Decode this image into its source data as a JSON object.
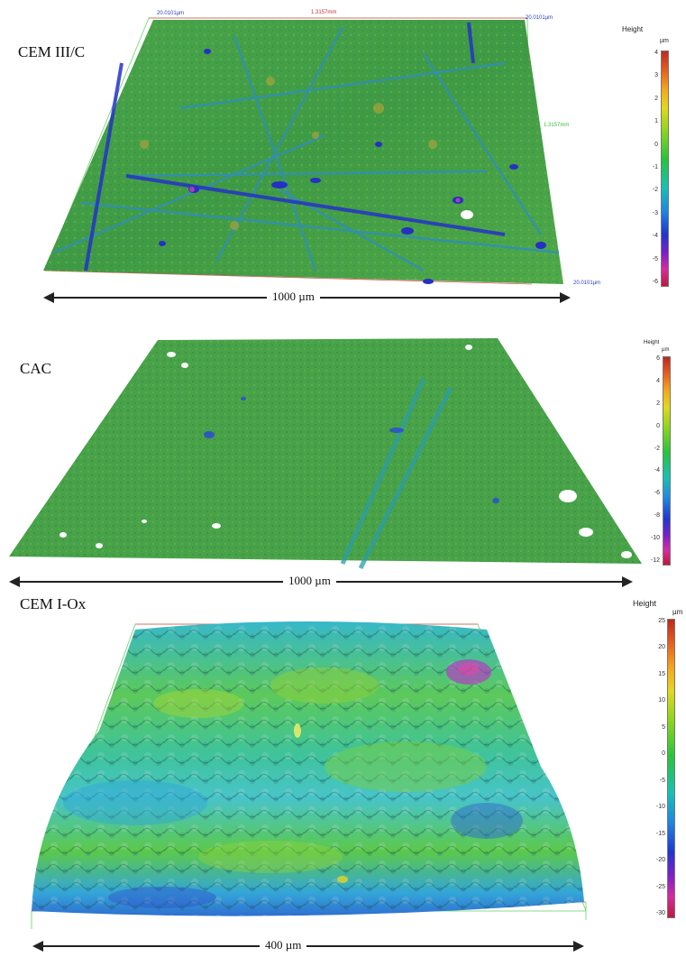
{
  "panels": [
    {
      "label": "CEM III/C",
      "scale": "1000 µm",
      "colorbar": {
        "title": "Height",
        "unit": "µm",
        "ticks": [
          "4",
          "3",
          "2",
          "1",
          "0",
          "-1",
          "-2",
          "-3",
          "-4",
          "-5",
          "-6"
        ]
      },
      "measurements": [
        "20.0101µm",
        "1.3157mm",
        "20.0101µm",
        "1.3157mm",
        "20.0101µm"
      ]
    },
    {
      "label": "CAC",
      "scale": "1000 µm",
      "colorbar": {
        "title": "Height",
        "unit": "µm",
        "ticks": [
          "6",
          "4",
          "2",
          "0",
          "-2",
          "-4",
          "-6",
          "-8",
          "-10",
          "-12"
        ]
      }
    },
    {
      "label": "CEM I-Ox",
      "scale": "400 µm",
      "colorbar": {
        "title": "Height",
        "unit": "µm",
        "ticks": [
          "25",
          "20",
          "15",
          "10",
          "5",
          "0",
          "-5",
          "-10",
          "-15",
          "-20",
          "-25",
          "-30"
        ]
      }
    }
  ]
}
